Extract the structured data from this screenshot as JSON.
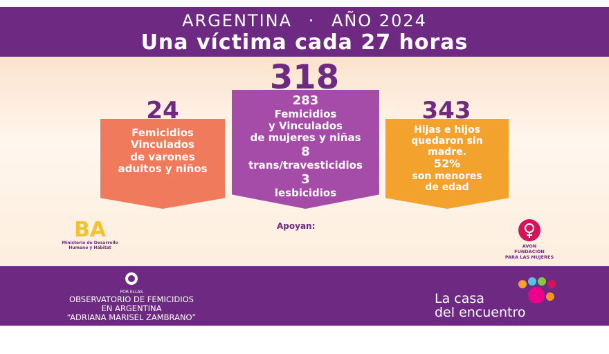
{
  "header": {
    "country": "ARGENTINA",
    "separator": "·",
    "year": "AÑO 2024",
    "tagline": "Una víctima cada 27 horas"
  },
  "stats": {
    "total": "318",
    "left": {
      "number": "24",
      "lines": [
        "Femicidios",
        "Vinculados",
        "de varones",
        "adultos y niños"
      ]
    },
    "center": {
      "number": "283",
      "lines": [
        "Femicidios",
        "y Vinculados",
        "de mujeres y niñas"
      ],
      "trans_number": "8",
      "trans_label": "trans/travesticidios",
      "lesbo_number": "3",
      "lesbo_label": "lesbicidios"
    },
    "right": {
      "number": "343",
      "lines": [
        "Hijas e hijos",
        "quedaron sin",
        "madre."
      ],
      "percent": "52%",
      "percent_lines": [
        "son menores",
        "de edad"
      ]
    }
  },
  "supporters": {
    "label": "Apoyan:",
    "ba_logo": "BA",
    "ba_caption": [
      "Ministerio de Desarrollo",
      "Humano y Hábitat"
    ],
    "avon": [
      "AVON",
      "FUNDACIÓN",
      "PARA LAS MUJERES"
    ]
  },
  "footer": {
    "por_ellas": "POR ELLAS",
    "observatory": [
      "OBSERVATORIO DE FEMICIDIOS",
      "EN ARGENTINA",
      "“ADRIANA MARISEL ZAMBRANO”"
    ],
    "org": [
      "La casa",
      "del encuentro"
    ]
  }
}
